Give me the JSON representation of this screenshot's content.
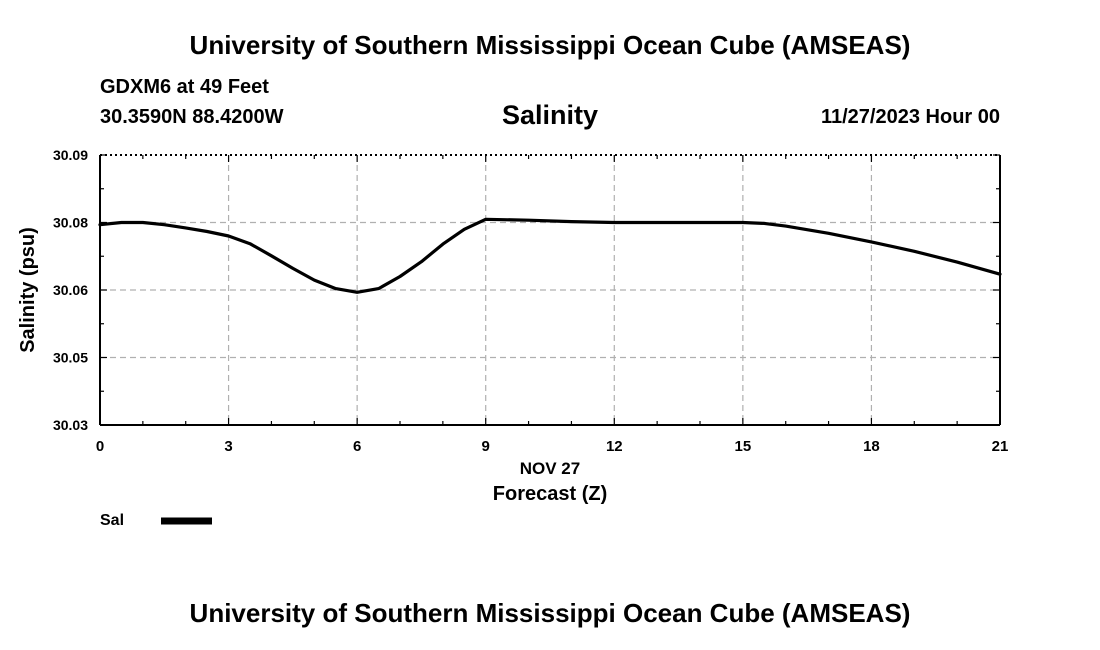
{
  "header": {
    "title": "University of Southern Mississippi Ocean Cube (AMSEAS)",
    "station": "GDXM6 at 49 Feet",
    "coordinates": "30.3590N  88.4200W",
    "parameter": "Salinity",
    "datetime": "11/27/2023 Hour 00"
  },
  "footer": {
    "title": "University of Southern Mississippi Ocean Cube (AMSEAS)"
  },
  "chart_data": {
    "type": "line",
    "title": "Salinity",
    "xlabel": "Forecast (Z)",
    "xlabel_date": "NOV 27",
    "ylabel": "Salinity (psu)",
    "xlim": [
      0,
      21
    ],
    "ylim": [
      30.03,
      30.09
    ],
    "x_ticks": [
      0,
      3,
      6,
      9,
      12,
      15,
      18,
      21
    ],
    "y_ticks": [
      {
        "value": 30.03,
        "label": "30.03"
      },
      {
        "value": 30.045,
        "label": "30.05"
      },
      {
        "value": 30.06,
        "label": "30.06"
      },
      {
        "value": 30.075,
        "label": "30.08"
      },
      {
        "value": 30.09,
        "label": "30.09"
      }
    ],
    "grid": true,
    "legend": [
      {
        "name": "Sal",
        "color": "#000000"
      }
    ],
    "series": [
      {
        "name": "Sal",
        "color": "#000000",
        "x": [
          0,
          0.5,
          1,
          1.5,
          2,
          2.5,
          3,
          3.5,
          4,
          4.5,
          5,
          5.5,
          6,
          6.5,
          7,
          7.5,
          8,
          8.5,
          9,
          10,
          11,
          12,
          13,
          14,
          15,
          15.5,
          16,
          17,
          18,
          19,
          20,
          21
        ],
        "values": [
          30.0745,
          30.075,
          30.075,
          30.0745,
          30.0738,
          30.073,
          30.072,
          30.0703,
          30.0676,
          30.0648,
          30.0622,
          30.0603,
          30.0595,
          30.0603,
          30.063,
          30.0663,
          30.0702,
          30.0735,
          30.0757,
          30.0755,
          30.0752,
          30.075,
          30.075,
          30.075,
          30.075,
          30.0748,
          30.0742,
          30.0726,
          30.0707,
          30.0686,
          30.0662,
          30.0635
        ]
      }
    ]
  }
}
